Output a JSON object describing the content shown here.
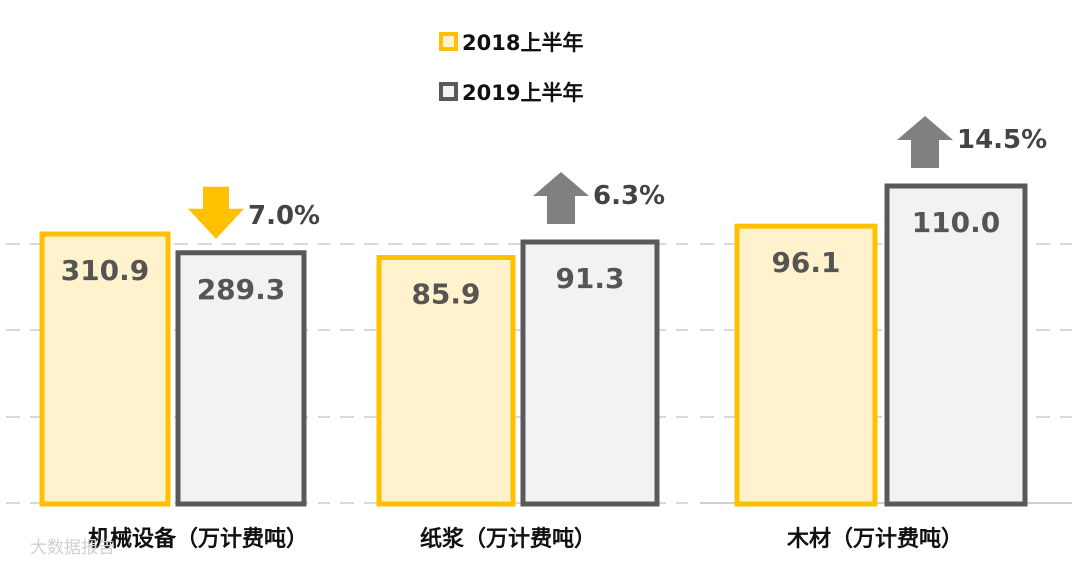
{
  "chart_data": {
    "type": "bar",
    "categories": [
      "机械设备（万计费吨）",
      "纸浆（万计费吨）",
      "木材（万计费吨）"
    ],
    "series": [
      {
        "name": "2018上半年",
        "values": [
          310.9,
          85.9,
          96.1
        ]
      },
      {
        "name": "2019上半年",
        "values": [
          289.3,
          91.3,
          110.0
        ]
      }
    ],
    "value_labels": [
      [
        "310.9",
        "85.9",
        "96.1"
      ],
      [
        "289.3",
        "91.3",
        "110.0"
      ]
    ],
    "changes": [
      {
        "label": "7.0%",
        "direction": "down",
        "color": "#ffc000"
      },
      {
        "label": "6.3%",
        "direction": "up",
        "color": "#808080"
      },
      {
        "label": "14.5%",
        "direction": "up",
        "color": "#808080"
      }
    ],
    "independent_axis_per_category": true,
    "grid": true,
    "legend_position": "top-center"
  },
  "colors": {
    "series_2018_fill": "#fff2cc",
    "series_2018_stroke": "#ffc000",
    "series_2019_fill": "#f2f2f2",
    "series_2019_stroke": "#595959"
  },
  "watermark": "大数据报告"
}
